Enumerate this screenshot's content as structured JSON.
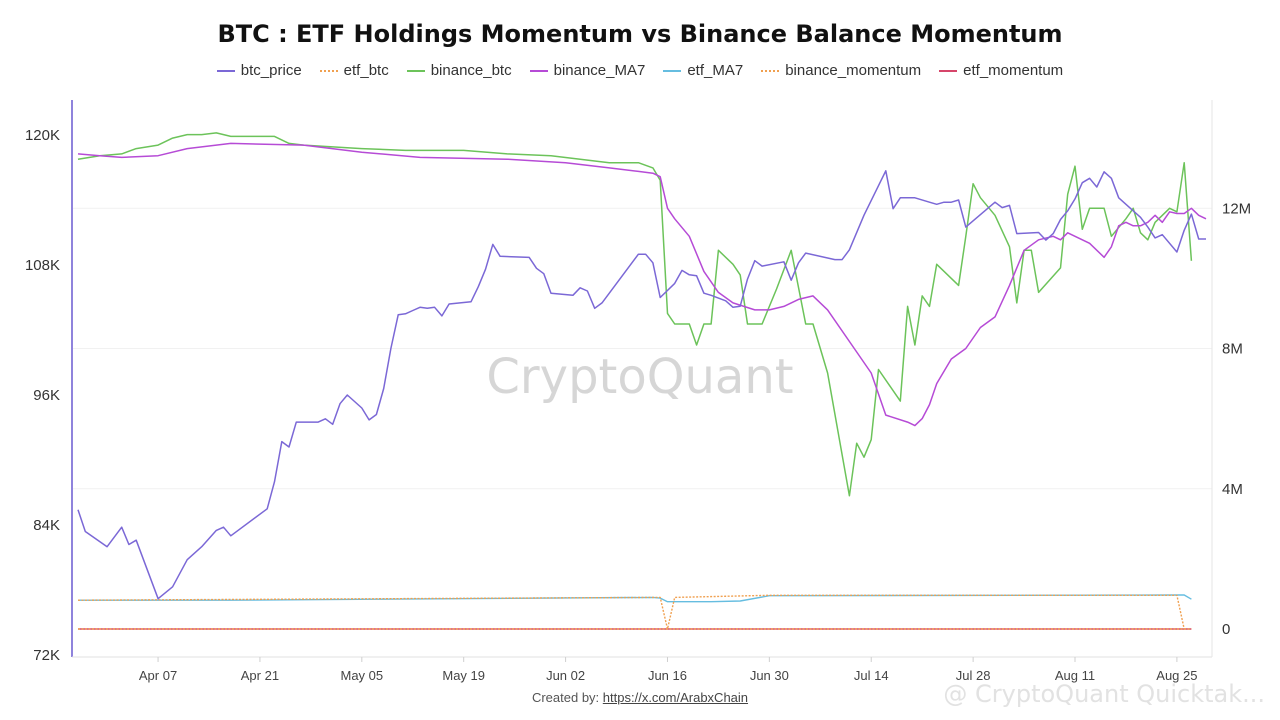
{
  "chart_data": {
    "type": "line",
    "title": "BTC : ETF Holdings Momentum vs Binance Balance Momentum",
    "credit_prefix": "Created by:",
    "credit_link": "https://x.com/ArabxChain",
    "watermark": "CryptoQuant",
    "watermark_corner": "@ CryptoQuant Quicktak...",
    "x_ticks": [
      "Apr 07",
      "Apr 21",
      "May 05",
      "May 19",
      "Jun 02",
      "Jun 16",
      "Jun 30",
      "Jul 14",
      "Jul 28",
      "Aug 11",
      "Aug 25"
    ],
    "x_tick_days": [
      0,
      14,
      28,
      42,
      56,
      70,
      84,
      98,
      112,
      126,
      140
    ],
    "x_range_days": [
      -11,
      144
    ],
    "y_left": {
      "ticks": [
        "120K",
        "108K",
        "96K",
        "84K",
        "72K"
      ],
      "values": [
        120000,
        108000,
        96000,
        84000,
        72000
      ],
      "range": [
        72000,
        120000
      ]
    },
    "y_right": {
      "ticks": [
        "12M",
        "8M",
        "4M",
        "0"
      ],
      "values": [
        12000000,
        8000000,
        4000000,
        0
      ],
      "range": [
        0,
        16000000
      ]
    },
    "colors": {
      "btc_price": "#7b68d6",
      "etf_btc": "#f0a050",
      "binance_btc": "#6cc35a",
      "binance_MA7": "#b64bd6",
      "etf_MA7": "#66bde0",
      "binance_momentum": "#f0a050",
      "etf_momentum": "#d6456a"
    },
    "series": [
      {
        "name": "btc_price",
        "axis": "left",
        "style": "solid",
        "points": [
          [
            -11,
            85400
          ],
          [
            -10,
            83400
          ],
          [
            -7,
            82000
          ],
          [
            -5,
            83800
          ],
          [
            -4,
            82200
          ],
          [
            -3,
            82600
          ],
          [
            0,
            77200
          ],
          [
            2,
            78300
          ],
          [
            4,
            80800
          ],
          [
            6,
            82000
          ],
          [
            8,
            83500
          ],
          [
            9,
            83800
          ],
          [
            10,
            83000
          ],
          [
            15,
            85500
          ],
          [
            16,
            88000
          ],
          [
            17,
            91700
          ],
          [
            18,
            91200
          ],
          [
            19,
            93500
          ],
          [
            22,
            93500
          ],
          [
            23,
            93800
          ],
          [
            24,
            93300
          ],
          [
            25,
            95200
          ],
          [
            26,
            96000
          ],
          [
            28,
            94800
          ],
          [
            29,
            93700
          ],
          [
            30,
            94200
          ],
          [
            31,
            96600
          ],
          [
            32,
            100300
          ],
          [
            33,
            103400
          ],
          [
            34,
            103500
          ],
          [
            35,
            103800
          ],
          [
            36,
            104100
          ],
          [
            37,
            104000
          ],
          [
            38,
            104100
          ],
          [
            39,
            103300
          ],
          [
            40,
            104400
          ],
          [
            43,
            104600
          ],
          [
            44,
            106000
          ],
          [
            45,
            107600
          ],
          [
            46,
            109900
          ],
          [
            47,
            108800
          ],
          [
            51,
            108700
          ],
          [
            52,
            107700
          ],
          [
            53,
            107200
          ],
          [
            54,
            105400
          ],
          [
            57,
            105200
          ],
          [
            58,
            105900
          ],
          [
            59,
            105600
          ],
          [
            60,
            104000
          ],
          [
            61,
            104500
          ],
          [
            66,
            109000
          ],
          [
            67,
            109000
          ],
          [
            68,
            108200
          ],
          [
            69,
            105000
          ],
          [
            71,
            106300
          ],
          [
            72,
            107500
          ],
          [
            73,
            107100
          ],
          [
            74,
            107000
          ],
          [
            75,
            105400
          ],
          [
            76,
            105200
          ],
          [
            78,
            104700
          ],
          [
            79,
            104100
          ],
          [
            80,
            104200
          ],
          [
            81,
            106700
          ],
          [
            82,
            108400
          ],
          [
            83,
            107900
          ],
          [
            86,
            108300
          ],
          [
            87,
            106600
          ],
          [
            88,
            108200
          ],
          [
            89,
            109100
          ],
          [
            93,
            108500
          ],
          [
            94,
            108500
          ],
          [
            95,
            109400
          ],
          [
            97,
            112600
          ],
          [
            100,
            116700
          ],
          [
            101,
            113200
          ],
          [
            102,
            114200
          ],
          [
            104,
            114200
          ],
          [
            106,
            113800
          ],
          [
            107,
            113600
          ],
          [
            108,
            113800
          ],
          [
            109,
            113800
          ],
          [
            110,
            114000
          ],
          [
            111,
            111500
          ],
          [
            115,
            113800
          ],
          [
            116,
            113300
          ],
          [
            117,
            113500
          ],
          [
            118,
            110900
          ],
          [
            121,
            111000
          ],
          [
            122,
            110300
          ],
          [
            123,
            110900
          ],
          [
            124,
            112200
          ],
          [
            125,
            113000
          ],
          [
            126,
            114100
          ],
          [
            127,
            115600
          ],
          [
            128,
            116000
          ],
          [
            129,
            115200
          ],
          [
            130,
            116600
          ],
          [
            131,
            116000
          ],
          [
            132,
            114200
          ],
          [
            134,
            113000
          ],
          [
            135,
            112400
          ],
          [
            136,
            111500
          ],
          [
            137,
            110500
          ],
          [
            138,
            110800
          ],
          [
            140,
            109200
          ],
          [
            141,
            111200
          ],
          [
            142,
            112700
          ],
          [
            143,
            110400
          ],
          [
            144,
            110400
          ]
        ]
      },
      {
        "name": "etf_btc",
        "axis": "right",
        "style": "dotted",
        "points": [
          [
            -11,
            820000
          ],
          [
            69,
            900000
          ],
          [
            70,
            0
          ],
          [
            71,
            900000
          ],
          [
            84,
            960000
          ],
          [
            140,
            960000
          ],
          [
            141,
            0
          ]
        ]
      },
      {
        "name": "binance_btc",
        "axis": "right",
        "style": "solid",
        "points": [
          [
            -11,
            13400000
          ],
          [
            -8,
            13500000
          ],
          [
            -5,
            13550000
          ],
          [
            -3,
            13700000
          ],
          [
            0,
            13800000
          ],
          [
            2,
            14000000
          ],
          [
            4,
            14100000
          ],
          [
            6,
            14100000
          ],
          [
            8,
            14150000
          ],
          [
            10,
            14050000
          ],
          [
            16,
            14050000
          ],
          [
            18,
            13850000
          ],
          [
            20,
            13800000
          ],
          [
            24,
            13750000
          ],
          [
            28,
            13700000
          ],
          [
            34,
            13650000
          ],
          [
            42,
            13650000
          ],
          [
            48,
            13550000
          ],
          [
            54,
            13500000
          ],
          [
            62,
            13300000
          ],
          [
            66,
            13300000
          ],
          [
            68,
            13150000
          ],
          [
            69,
            12800000
          ],
          [
            70,
            9000000
          ],
          [
            71,
            8700000
          ],
          [
            73,
            8700000
          ],
          [
            74,
            8100000
          ],
          [
            75,
            8700000
          ],
          [
            76,
            8700000
          ],
          [
            77,
            10800000
          ],
          [
            79,
            10400000
          ],
          [
            80,
            10100000
          ],
          [
            81,
            8700000
          ],
          [
            83,
            8700000
          ],
          [
            85,
            9700000
          ],
          [
            87,
            10800000
          ],
          [
            89,
            8700000
          ],
          [
            90,
            8700000
          ],
          [
            92,
            7300000
          ],
          [
            95,
            3800000
          ],
          [
            96,
            5300000
          ],
          [
            97,
            4900000
          ],
          [
            98,
            5400000
          ],
          [
            99,
            7400000
          ],
          [
            102,
            6500000
          ],
          [
            103,
            9200000
          ],
          [
            104,
            8100000
          ],
          [
            105,
            9500000
          ],
          [
            106,
            9200000
          ],
          [
            107,
            10400000
          ],
          [
            110,
            9800000
          ],
          [
            111,
            11200000
          ],
          [
            112,
            12700000
          ],
          [
            113,
            12300000
          ],
          [
            115,
            11800000
          ],
          [
            117,
            10900000
          ],
          [
            118,
            9300000
          ],
          [
            119,
            10800000
          ],
          [
            120,
            10800000
          ],
          [
            121,
            9600000
          ],
          [
            124,
            10300000
          ],
          [
            125,
            12400000
          ],
          [
            126,
            13200000
          ],
          [
            127,
            11400000
          ],
          [
            128,
            12000000
          ],
          [
            129,
            12000000
          ],
          [
            130,
            12000000
          ],
          [
            131,
            11200000
          ],
          [
            133,
            11700000
          ],
          [
            134,
            12000000
          ],
          [
            135,
            11300000
          ],
          [
            136,
            11100000
          ],
          [
            137,
            11600000
          ],
          [
            139,
            12000000
          ],
          [
            140,
            11900000
          ],
          [
            141,
            13300000
          ],
          [
            142,
            10500000
          ]
        ]
      },
      {
        "name": "binance_MA7",
        "axis": "right",
        "style": "solid",
        "points": [
          [
            -11,
            13550000
          ],
          [
            -8,
            13500000
          ],
          [
            -5,
            13450000
          ],
          [
            0,
            13500000
          ],
          [
            4,
            13700000
          ],
          [
            10,
            13850000
          ],
          [
            20,
            13800000
          ],
          [
            28,
            13600000
          ],
          [
            36,
            13450000
          ],
          [
            48,
            13400000
          ],
          [
            56,
            13300000
          ],
          [
            62,
            13150000
          ],
          [
            66,
            13050000
          ],
          [
            68,
            13000000
          ],
          [
            69,
            12900000
          ],
          [
            70,
            12000000
          ],
          [
            71,
            11700000
          ],
          [
            73,
            11200000
          ],
          [
            75,
            10200000
          ],
          [
            77,
            9600000
          ],
          [
            79,
            9300000
          ],
          [
            82,
            9100000
          ],
          [
            84,
            9100000
          ],
          [
            86,
            9200000
          ],
          [
            88,
            9400000
          ],
          [
            90,
            9500000
          ],
          [
            92,
            9100000
          ],
          [
            96,
            7900000
          ],
          [
            98,
            7300000
          ],
          [
            100,
            6100000
          ],
          [
            103,
            5900000
          ],
          [
            104,
            5800000
          ],
          [
            105,
            6000000
          ],
          [
            106,
            6400000
          ],
          [
            107,
            7000000
          ],
          [
            109,
            7700000
          ],
          [
            111,
            8000000
          ],
          [
            112,
            8300000
          ],
          [
            113,
            8600000
          ],
          [
            115,
            8900000
          ],
          [
            117,
            9800000
          ],
          [
            119,
            10800000
          ],
          [
            121,
            11100000
          ],
          [
            123,
            11200000
          ],
          [
            124,
            11100000
          ],
          [
            125,
            11300000
          ],
          [
            126,
            11200000
          ],
          [
            128,
            11000000
          ],
          [
            130,
            10600000
          ],
          [
            131,
            10900000
          ],
          [
            132,
            11500000
          ],
          [
            133,
            11600000
          ],
          [
            134,
            11500000
          ],
          [
            135,
            11500000
          ],
          [
            136,
            11600000
          ],
          [
            137,
            11800000
          ],
          [
            138,
            11600000
          ],
          [
            139,
            11900000
          ],
          [
            140,
            11850000
          ],
          [
            141,
            11850000
          ],
          [
            142,
            12000000
          ],
          [
            143,
            11800000
          ],
          [
            144,
            11700000
          ]
        ]
      },
      {
        "name": "etf_MA7",
        "axis": "right",
        "style": "solid",
        "points": [
          [
            -11,
            820000
          ],
          [
            10,
            820000
          ],
          [
            30,
            850000
          ],
          [
            68,
            900000
          ],
          [
            69,
            880000
          ],
          [
            70,
            780000
          ],
          [
            76,
            780000
          ],
          [
            80,
            800000
          ],
          [
            84,
            950000
          ],
          [
            140,
            970000
          ],
          [
            141,
            970000
          ],
          [
            142,
            850000
          ]
        ]
      },
      {
        "name": "binance_momentum",
        "axis": "right",
        "style": "dotted",
        "points": [
          [
            -11,
            0
          ],
          [
            142,
            0
          ]
        ]
      },
      {
        "name": "etf_momentum",
        "axis": "right",
        "style": "solid",
        "points": [
          [
            -11,
            0
          ],
          [
            142,
            0
          ]
        ]
      }
    ]
  }
}
